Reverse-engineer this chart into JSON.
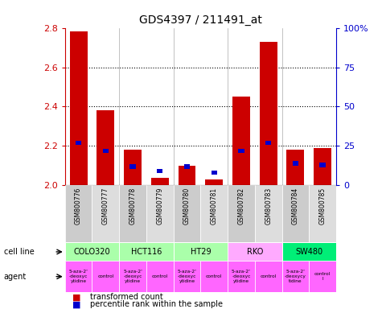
{
  "title": "GDS4397 / 211491_at",
  "samples": [
    "GSM800776",
    "GSM800777",
    "GSM800778",
    "GSM800779",
    "GSM800780",
    "GSM800781",
    "GSM800782",
    "GSM800783",
    "GSM800784",
    "GSM800785"
  ],
  "red_values": [
    2.78,
    2.38,
    2.18,
    2.04,
    2.1,
    2.03,
    2.45,
    2.73,
    2.18,
    2.19
  ],
  "blue_pct": [
    27,
    22,
    12,
    9,
    12,
    8,
    22,
    27,
    14,
    13
  ],
  "ylim": [
    2.0,
    2.8
  ],
  "right_ylim": [
    0,
    100
  ],
  "right_yticks": [
    0,
    25,
    50,
    75,
    100
  ],
  "right_yticklabels": [
    "0",
    "25",
    "50",
    "75",
    "100%"
  ],
  "left_yticks": [
    2.0,
    2.2,
    2.4,
    2.6,
    2.8
  ],
  "cl_spans": [
    {
      "label": "COLO320",
      "start": 0,
      "end": 2,
      "color": "#aaffaa"
    },
    {
      "label": "HCT116",
      "start": 2,
      "end": 4,
      "color": "#aaffaa"
    },
    {
      "label": "HT29",
      "start": 4,
      "end": 6,
      "color": "#aaffaa"
    },
    {
      "label": "RKO",
      "start": 6,
      "end": 8,
      "color": "#ffaaff"
    },
    {
      "label": "SW480",
      "start": 8,
      "end": 10,
      "color": "#00ee77"
    }
  ],
  "agent_spans": [
    {
      "label": "5-aza-2'\n-deoxyc\nytidine",
      "start": 0,
      "end": 1,
      "color": "#ff66ff"
    },
    {
      "label": "control",
      "start": 1,
      "end": 2,
      "color": "#ff66ff"
    },
    {
      "label": "5-aza-2'\n-deoxyc\nytidine",
      "start": 2,
      "end": 3,
      "color": "#ff66ff"
    },
    {
      "label": "control",
      "start": 3,
      "end": 4,
      "color": "#ff66ff"
    },
    {
      "label": "5-aza-2'\n-deoxyc\nytidine",
      "start": 4,
      "end": 5,
      "color": "#ff66ff"
    },
    {
      "label": "control",
      "start": 5,
      "end": 6,
      "color": "#ff66ff"
    },
    {
      "label": "5-aza-2'\n-deoxyc\nytidine",
      "start": 6,
      "end": 7,
      "color": "#ff66ff"
    },
    {
      "label": "control",
      "start": 7,
      "end": 8,
      "color": "#ff66ff"
    },
    {
      "label": "5-aza-2'\n-deoxycy\ntidine",
      "start": 8,
      "end": 9,
      "color": "#ff66ff"
    },
    {
      "label": "control\nl",
      "start": 9,
      "end": 10,
      "color": "#ff66ff"
    }
  ],
  "bar_color": "#cc0000",
  "blue_color": "#0000cc",
  "left_axis_color": "#cc0000",
  "right_axis_color": "#0000cc",
  "sample_bg_even": "#cccccc",
  "sample_bg_odd": "#dddddd"
}
